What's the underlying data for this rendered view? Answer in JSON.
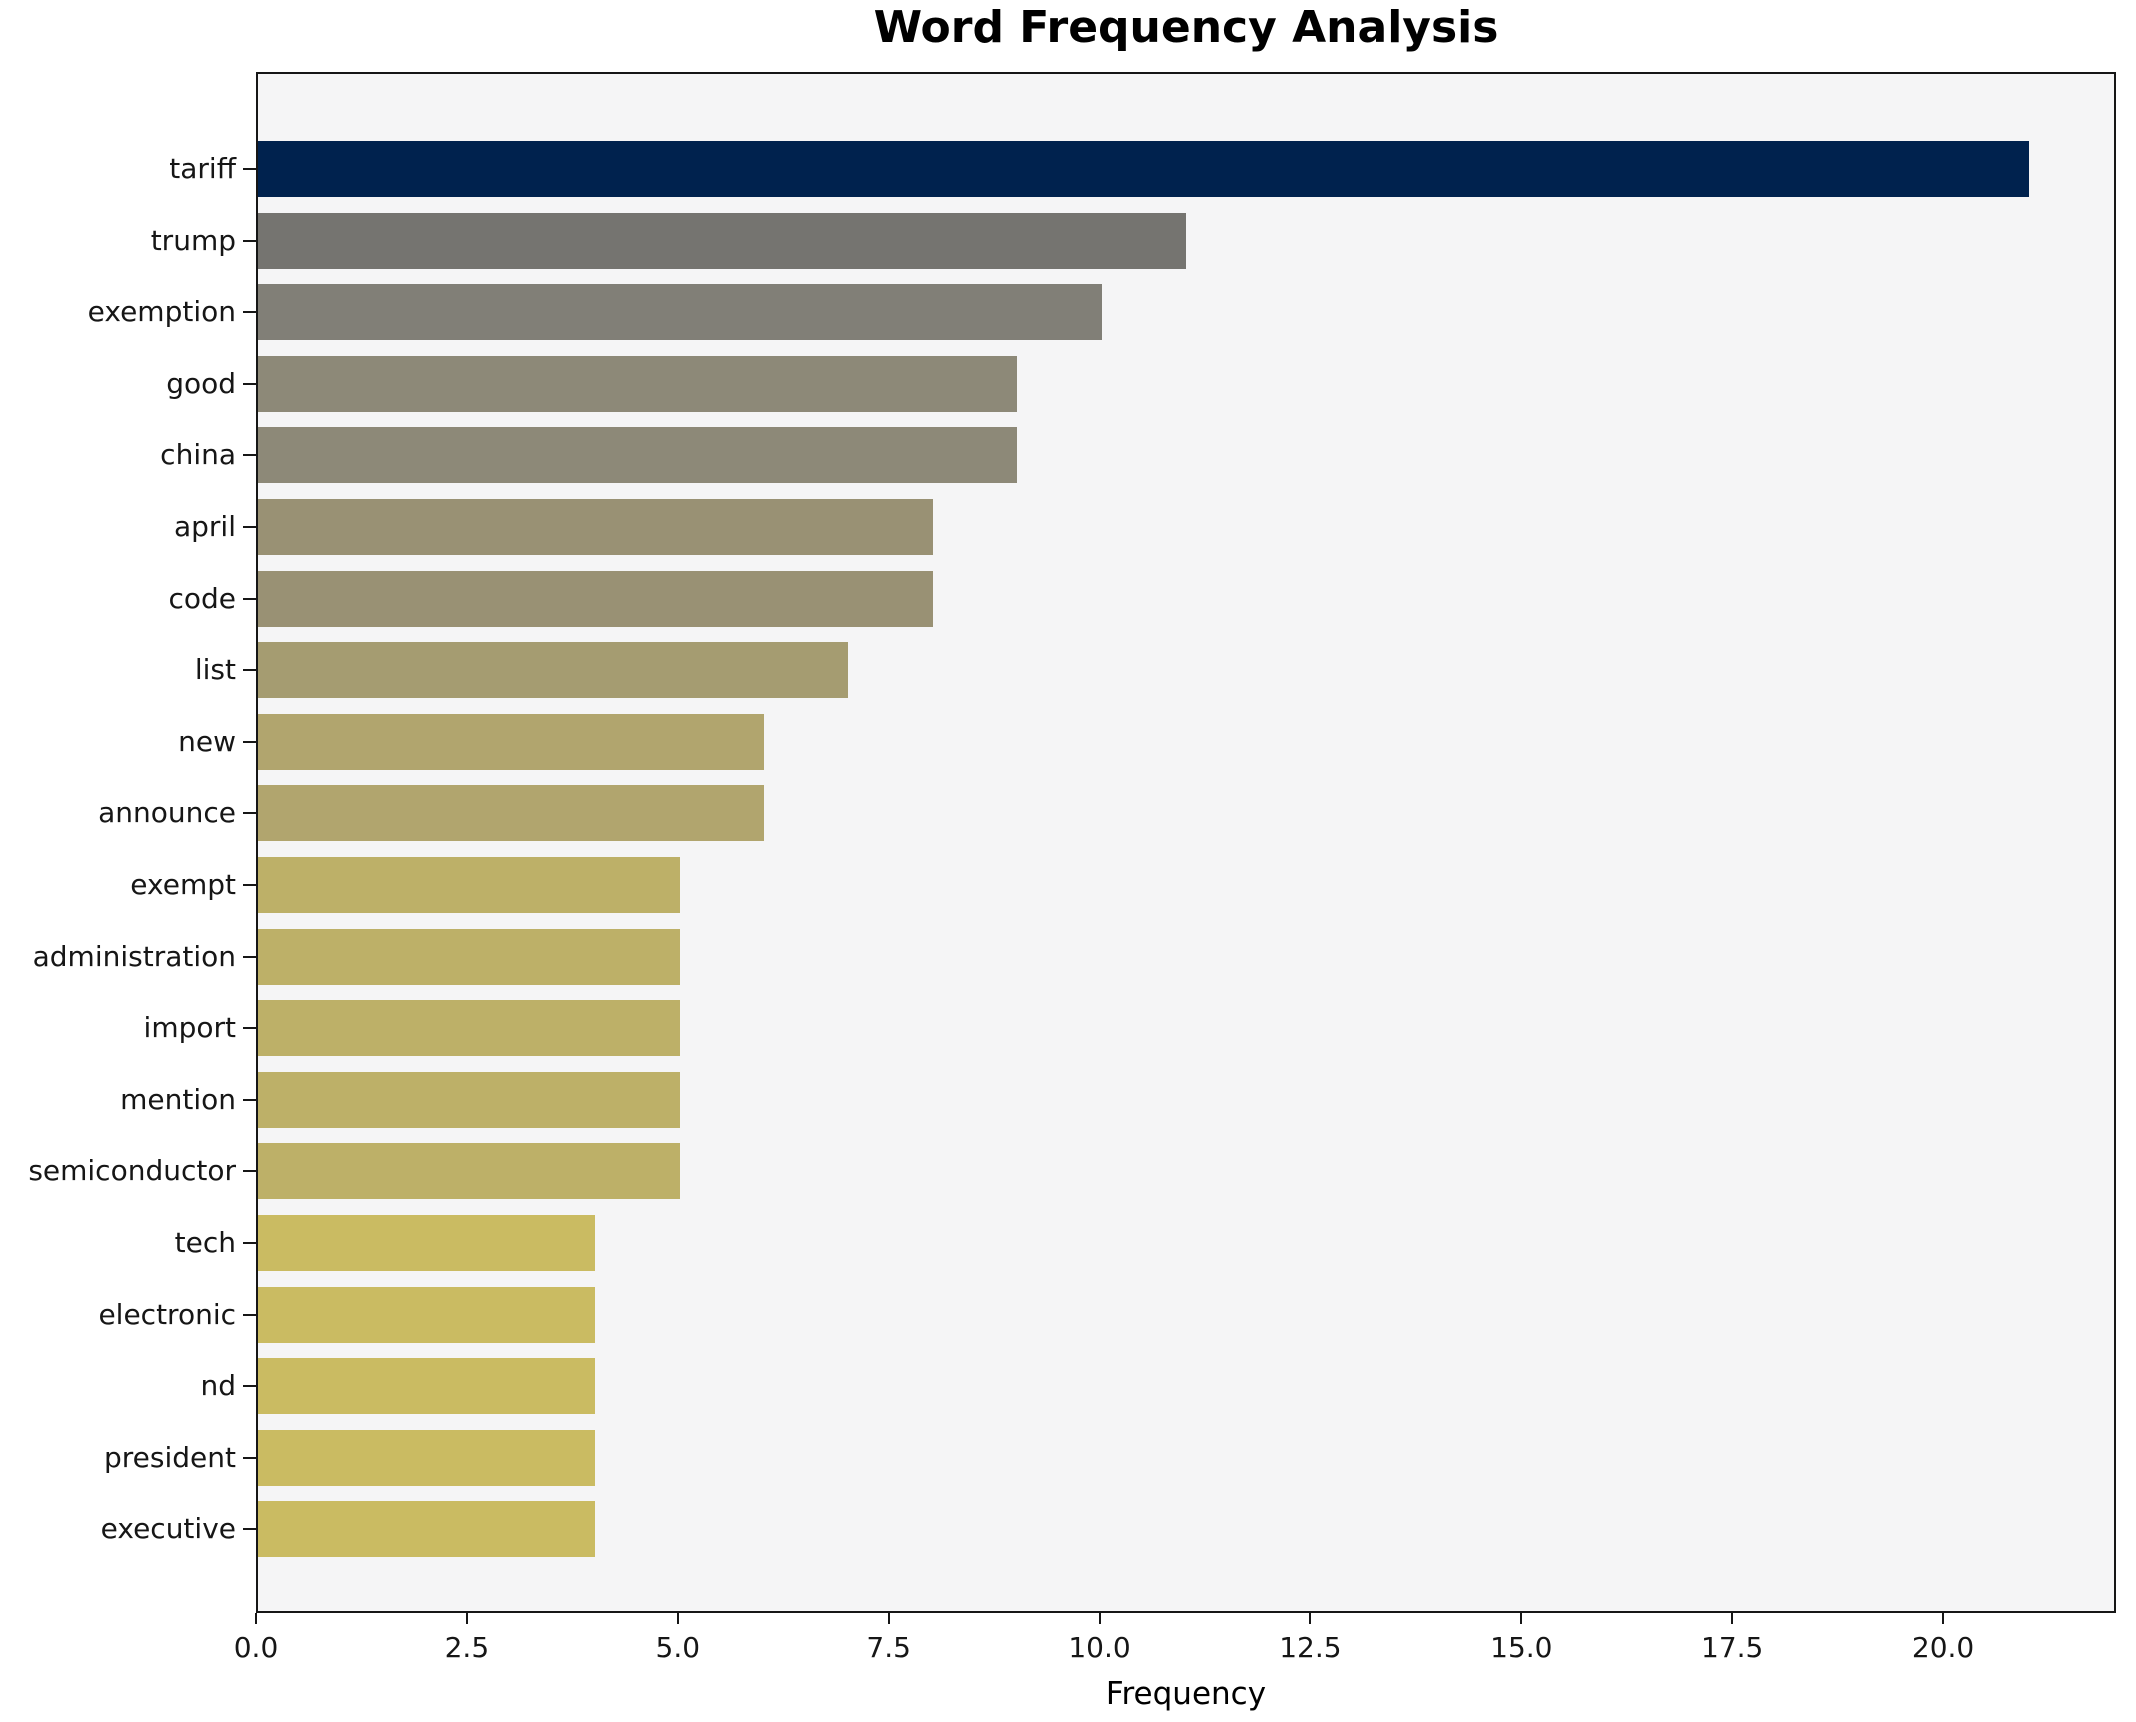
{
  "chart_data": {
    "type": "bar",
    "orientation": "horizontal",
    "title": "Word Frequency Analysis",
    "xlabel": "Frequency",
    "categories": [
      "tariff",
      "trump",
      "exemption",
      "good",
      "china",
      "april",
      "code",
      "list",
      "new",
      "announce",
      "exempt",
      "administration",
      "import",
      "mention",
      "semiconductor",
      "tech",
      "electronic",
      "nd",
      "president",
      "executive"
    ],
    "values": [
      21,
      11,
      10,
      9,
      9,
      8,
      8,
      7,
      6,
      6,
      5,
      5,
      5,
      5,
      5,
      4,
      4,
      4,
      4,
      4
    ],
    "bar_colors": [
      "#00224e",
      "#757470",
      "#817f77",
      "#8d8978",
      "#8d8978",
      "#999174",
      "#999174",
      "#a59c71",
      "#b1a56e",
      "#b1a56e",
      "#bdb068",
      "#bdb068",
      "#bdb068",
      "#bdb068",
      "#bdb068",
      "#cabb62",
      "#cabb62",
      "#cabb62",
      "#cabb62",
      "#cabb62"
    ],
    "xlim": [
      0,
      22.05
    ],
    "xticks": [
      0,
      2.5,
      5,
      7.5,
      10,
      12.5,
      15,
      17.5,
      20
    ],
    "xtick_labels": [
      "0.0",
      "2.5",
      "5.0",
      "7.5",
      "10.0",
      "12.5",
      "15.0",
      "17.5",
      "20.0"
    ],
    "grid": false,
    "legend": false,
    "axes_background": "#f5f5f6"
  }
}
